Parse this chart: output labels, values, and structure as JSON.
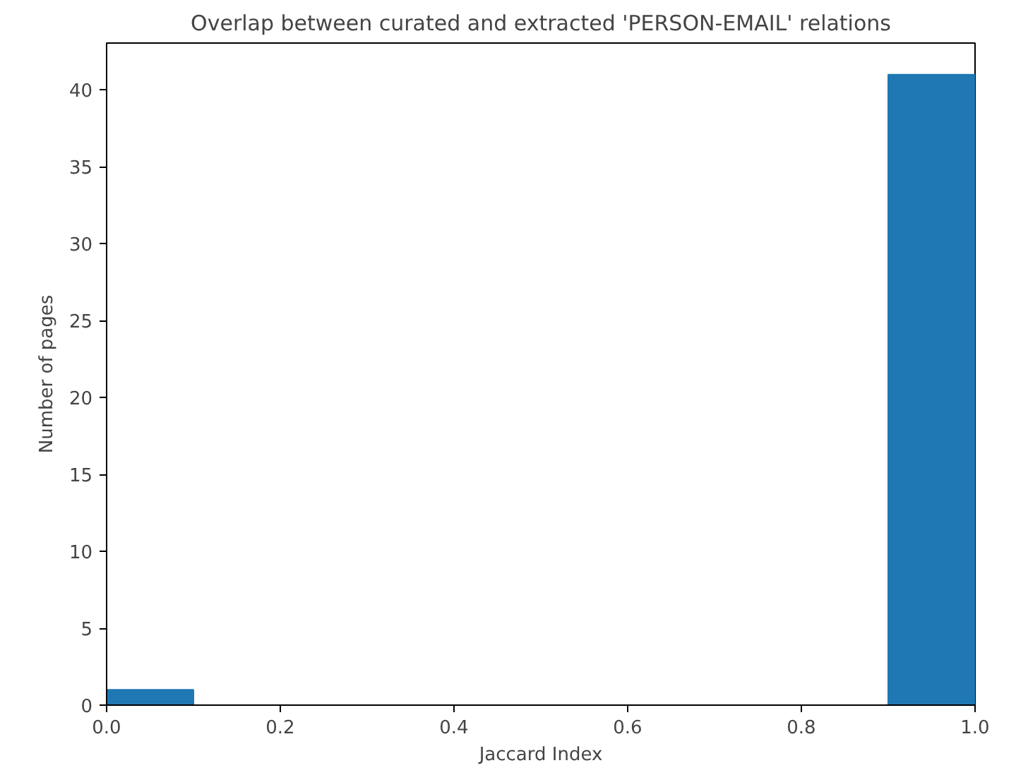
{
  "chart_data": {
    "type": "histogram",
    "title": "Overlap between curated and extracted 'PERSON-EMAIL' relations",
    "xlabel": "Jaccard Index",
    "ylabel": "Number of pages",
    "bins": [
      0.0,
      0.1,
      0.2,
      0.3,
      0.4,
      0.5,
      0.6,
      0.7,
      0.8,
      0.9,
      1.0
    ],
    "values": [
      1,
      0,
      0,
      0,
      0,
      0,
      0,
      0,
      0,
      41
    ],
    "color": "#1f77b4",
    "xlim": [
      0.0,
      1.0
    ],
    "ylim": [
      0,
      43.05
    ],
    "xticks": [
      {
        "value": 0.0,
        "label": "0.0"
      },
      {
        "value": 0.2,
        "label": "0.2"
      },
      {
        "value": 0.4,
        "label": "0.4"
      },
      {
        "value": 0.6,
        "label": "0.6"
      },
      {
        "value": 0.8,
        "label": "0.8"
      },
      {
        "value": 1.0,
        "label": "1.0"
      }
    ],
    "yticks": [
      0,
      5,
      10,
      15,
      20,
      25,
      30,
      35,
      40
    ],
    "grid": false
  }
}
